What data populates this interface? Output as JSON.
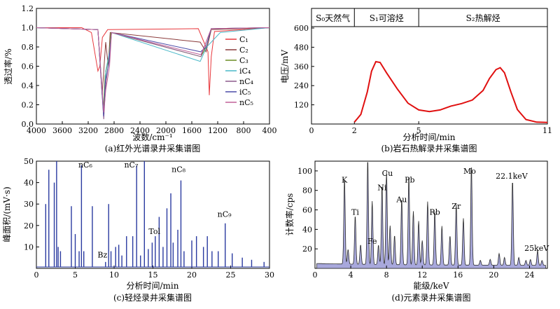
{
  "chart_data": [
    {
      "type": "line",
      "caption": "(a)红外光谱录井采集谱图",
      "xlabel": "波数/cm⁻¹",
      "ylabel": "透过率/%",
      "xlim": [
        4000,
        400
      ],
      "ylim": [
        0,
        1.2
      ],
      "xticks": [
        4000,
        3600,
        3200,
        2800,
        2400,
        2000,
        1600,
        1200,
        800,
        400
      ],
      "yticks": [
        0,
        0.2,
        0.4,
        0.6,
        0.8,
        1.0,
        1.2
      ],
      "legend_position": "right",
      "series": [
        {
          "name": "C₁",
          "color": "#e8383d",
          "points": [
            [
              4000,
              1.0
            ],
            [
              3300,
              1.0
            ],
            [
              3150,
              0.95
            ],
            [
              3050,
              0.55
            ],
            [
              3020,
              0.6
            ],
            [
              2980,
              0.9
            ],
            [
              2900,
              0.98
            ],
            [
              1500,
              0.99
            ],
            [
              1350,
              0.75
            ],
            [
              1330,
              0.3
            ],
            [
              1300,
              0.7
            ],
            [
              1250,
              0.96
            ],
            [
              400,
              1.0
            ]
          ]
        },
        {
          "name": "C₂",
          "color": "#8a3a3a",
          "points": [
            [
              4000,
              1.0
            ],
            [
              3050,
              0.98
            ],
            [
              2985,
              0.3
            ],
            [
              2970,
              0.45
            ],
            [
              2930,
              0.85
            ],
            [
              2890,
              0.6
            ],
            [
              2860,
              0.95
            ],
            [
              1470,
              0.85
            ],
            [
              1380,
              0.75
            ],
            [
              1300,
              0.98
            ],
            [
              400,
              1.0
            ]
          ]
        },
        {
          "name": "C₃",
          "color": "#6b8e23",
          "points": [
            [
              4000,
              1.0
            ],
            [
              3050,
              0.98
            ],
            [
              2965,
              0.15
            ],
            [
              2940,
              0.5
            ],
            [
              2880,
              0.7
            ],
            [
              2850,
              0.95
            ],
            [
              1460,
              0.7
            ],
            [
              1380,
              0.8
            ],
            [
              1300,
              0.99
            ],
            [
              400,
              1.0
            ]
          ]
        },
        {
          "name": "iC₄",
          "color": "#49b8c8",
          "points": [
            [
              4000,
              1.0
            ],
            [
              3050,
              0.98
            ],
            [
              2960,
              0.1
            ],
            [
              2930,
              0.55
            ],
            [
              2870,
              0.75
            ],
            [
              2840,
              0.95
            ],
            [
              1470,
              0.65
            ],
            [
              1370,
              0.8
            ],
            [
              1160,
              0.95
            ],
            [
              400,
              1.0
            ]
          ]
        },
        {
          "name": "nC₄",
          "color": "#8c5a8c",
          "points": [
            [
              4000,
              1.0
            ],
            [
              3050,
              0.98
            ],
            [
              2960,
              0.05
            ],
            [
              2930,
              0.4
            ],
            [
              2875,
              0.7
            ],
            [
              2840,
              0.95
            ],
            [
              1460,
              0.7
            ],
            [
              1380,
              0.85
            ],
            [
              1300,
              0.99
            ],
            [
              400,
              1.0
            ]
          ]
        },
        {
          "name": "iC₅",
          "color": "#4b4ba8",
          "points": [
            [
              4000,
              1.0
            ],
            [
              3050,
              0.98
            ],
            [
              2962,
              0.08
            ],
            [
              2935,
              0.45
            ],
            [
              2875,
              0.65
            ],
            [
              2840,
              0.95
            ],
            [
              1465,
              0.75
            ],
            [
              1380,
              0.8
            ],
            [
              1300,
              0.99
            ],
            [
              400,
              1.0
            ]
          ]
        },
        {
          "name": "nC₅",
          "color": "#c06098",
          "points": [
            [
              4000,
              1.0
            ],
            [
              3050,
              0.98
            ],
            [
              2960,
              0.12
            ],
            [
              2930,
              0.35
            ],
            [
              2870,
              0.6
            ],
            [
              2840,
              0.95
            ],
            [
              1460,
              0.72
            ],
            [
              1380,
              0.85
            ],
            [
              1300,
              0.99
            ],
            [
              400,
              1.0
            ]
          ]
        }
      ]
    },
    {
      "type": "line",
      "caption": "(b)岩石热解录井采集谱图",
      "xlabel": "分析时间/min",
      "ylabel": "电压/mV",
      "xlim": [
        0,
        11
      ],
      "ylim": [
        0,
        600
      ],
      "xticks": [
        0,
        2,
        5,
        11
      ],
      "yticks": [
        120,
        240,
        360,
        480,
        600
      ],
      "bands": [
        {
          "label": "S₀天然气",
          "x0": 0,
          "x1": 2
        },
        {
          "label": "S₁可溶烃",
          "x0": 2,
          "x1": 5
        },
        {
          "label": "S₂热解烃",
          "x0": 5,
          "x1": 11
        }
      ],
      "series": [
        {
          "color": "#e01010",
          "points": [
            [
              2,
              12
            ],
            [
              2.3,
              60
            ],
            [
              2.6,
              200
            ],
            [
              2.8,
              330
            ],
            [
              3,
              390
            ],
            [
              3.2,
              385
            ],
            [
              3.5,
              320
            ],
            [
              4,
              220
            ],
            [
              4.5,
              130
            ],
            [
              5,
              88
            ],
            [
              5.5,
              78
            ],
            [
              6,
              88
            ],
            [
              6.5,
              112
            ],
            [
              7,
              128
            ],
            [
              7.5,
              150
            ],
            [
              8,
              210
            ],
            [
              8.3,
              285
            ],
            [
              8.6,
              340
            ],
            [
              8.8,
              352
            ],
            [
              9,
              320
            ],
            [
              9.3,
              200
            ],
            [
              9.6,
              90
            ],
            [
              10,
              28
            ],
            [
              10.5,
              12
            ],
            [
              11,
              10
            ]
          ]
        }
      ]
    },
    {
      "type": "bar",
      "caption": "(c)轻烃录井采集谱图",
      "xlabel": "分析时间/min",
      "ylabel": "峰面积/(mV·s)",
      "xlim": [
        0,
        30
      ],
      "ylim": [
        0,
        50
      ],
      "xticks": [
        0,
        5,
        10,
        15,
        20,
        25,
        30
      ],
      "yticks": [
        10,
        20,
        30,
        40,
        50
      ],
      "color": "#2a3aa0",
      "annotations": [
        {
          "text": "nC₆",
          "x": 6.3,
          "y": 47
        },
        {
          "text": "nC₇",
          "x": 12.2,
          "y": 47
        },
        {
          "text": "nC₈",
          "x": 18.3,
          "y": 45
        },
        {
          "text": "nC₉",
          "x": 24.2,
          "y": 24
        },
        {
          "text": "Tol",
          "x": 15.2,
          "y": 16
        },
        {
          "text": "Bz",
          "x": 8.5,
          "y": 5
        }
      ],
      "x": [
        1.2,
        1.6,
        2.3,
        2.6,
        2.8,
        3.1,
        4.5,
        5.0,
        5.5,
        5.8,
        6.1,
        7.2,
        8.9,
        9.3,
        9.6,
        10.2,
        10.6,
        11.0,
        11.6,
        12.4,
        12.9,
        13.4,
        13.9,
        14.4,
        14.9,
        15.3,
        15.8,
        16.3,
        16.8,
        17.3,
        17.6,
        18.2,
        18.6,
        19.0,
        20.0,
        20.6,
        21.5,
        22.0,
        22.6,
        23.4,
        24.3,
        25.2,
        26.5,
        27.7,
        29.3
      ],
      "values": [
        30,
        46,
        40,
        50,
        10,
        8,
        29,
        16,
        8,
        48,
        8,
        29,
        3,
        30,
        8,
        10,
        11,
        6,
        15,
        15,
        48,
        6,
        50,
        9,
        12,
        15,
        24,
        10,
        28,
        35,
        12,
        18,
        41,
        8,
        13,
        15,
        10,
        15,
        8,
        8,
        21,
        7,
        5,
        4,
        3
      ]
    },
    {
      "type": "area",
      "caption": "(d)元素录井采集谱图",
      "xlabel": "能级/keV",
      "ylabel": "计数率/cps",
      "xlim": [
        0,
        26
      ],
      "ylim": [
        0,
        110
      ],
      "xticks": [
        0,
        4,
        8,
        12,
        16,
        20,
        24
      ],
      "yticks": [
        20,
        40,
        60,
        80,
        100
      ],
      "fill": "#a8a8dc",
      "stroke": "#2b2b2b",
      "annotations": [
        {
          "text": "K",
          "x": 3.3,
          "y": 88
        },
        {
          "text": "Ti",
          "x": 4.5,
          "y": 55
        },
        {
          "text": "Fe",
          "x": 6.4,
          "y": 25
        },
        {
          "text": "Cu",
          "x": 8.1,
          "y": 95
        },
        {
          "text": "Ni",
          "x": 7.5,
          "y": 80
        },
        {
          "text": "Au",
          "x": 9.7,
          "y": 68
        },
        {
          "text": "Pb",
          "x": 10.6,
          "y": 88
        },
        {
          "text": "Rb",
          "x": 13.4,
          "y": 55
        },
        {
          "text": "Zr",
          "x": 15.8,
          "y": 61
        },
        {
          "text": "Mo",
          "x": 17.3,
          "y": 97
        },
        {
          "text": "22.1keV",
          "x": 22.0,
          "y": 92
        },
        {
          "text": "25keV",
          "x": 24.8,
          "y": 18
        }
      ],
      "peaks": [
        [
          3.3,
          88
        ],
        [
          3.7,
          15
        ],
        [
          4.5,
          50
        ],
        [
          5.1,
          20
        ],
        [
          5.9,
          108
        ],
        [
          6.4,
          65
        ],
        [
          7.1,
          20
        ],
        [
          7.5,
          82
        ],
        [
          8.0,
          95
        ],
        [
          8.4,
          40
        ],
        [
          8.9,
          30
        ],
        [
          9.7,
          68
        ],
        [
          10.5,
          92
        ],
        [
          11.0,
          55
        ],
        [
          11.6,
          45
        ],
        [
          12.0,
          25
        ],
        [
          12.6,
          65
        ],
        [
          13.4,
          55
        ],
        [
          14.2,
          40
        ],
        [
          15.1,
          30
        ],
        [
          15.8,
          62
        ],
        [
          16.6,
          48
        ],
        [
          17.5,
          103
        ],
        [
          18.5,
          5
        ],
        [
          19.6,
          6
        ],
        [
          20.6,
          12
        ],
        [
          21.2,
          8
        ],
        [
          22.1,
          87
        ],
        [
          22.8,
          8
        ],
        [
          23.6,
          5
        ],
        [
          24.1,
          6
        ],
        [
          24.9,
          15
        ],
        [
          25.4,
          5
        ]
      ]
    }
  ]
}
